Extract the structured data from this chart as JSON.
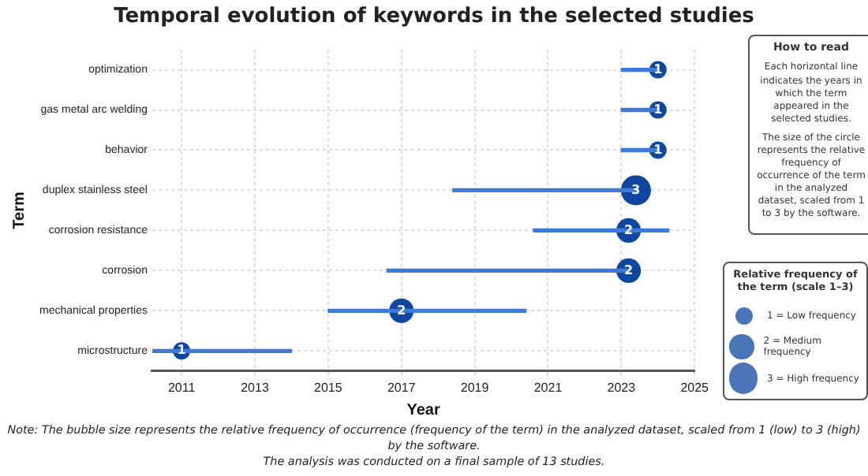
{
  "chart_data": {
    "type": "bar",
    "orientation": "horizontal",
    "title": "Temporal evolution of keywords in the selected studies",
    "xlabel": "Year",
    "ylabel": "Term",
    "legend_title": "Relative frequency of the term (scale 1–3)",
    "grid": true,
    "categories": [
      "optimization",
      "gas metal arc welding",
      "behavior",
      "duplex stainless steel",
      "corrosion resistance",
      "corrosion",
      "mechanical properties",
      "microstructure"
    ],
    "xlim": [
      2010.2,
      2025
    ],
    "xticks": [
      2011,
      2013,
      2015,
      2017,
      2019,
      2021,
      2023,
      2025
    ],
    "series": [
      {
        "color": "#3f7bd6",
        "base": [
          2023,
          2023,
          2023,
          2018.4,
          2020.6,
          2016.6,
          2015,
          2010.2
        ],
        "values": [
          1,
          1,
          1,
          5,
          3.7,
          6.6,
          5.4,
          3.8
        ]
      },
      {
        "type": "bubble",
        "color": "#0d47a1",
        "values": [
          2024,
          2024,
          2024,
          2023.4,
          2023.2,
          2023.2,
          2017,
          2011
        ],
        "sizes": [
          1,
          1,
          1,
          3,
          2,
          2,
          2,
          1
        ],
        "value_labels": [
          "1",
          "1",
          "1",
          "3",
          "2",
          "2",
          "2",
          "1"
        ]
      }
    ],
    "size_legend": [
      {
        "value": 1,
        "label": "1 = Low frequency"
      },
      {
        "value": 2,
        "label": "2 = Medium frequency"
      },
      {
        "value": 3,
        "label": "3 = High frequency"
      }
    ],
    "annotations": [
      "How to read",
      "Each horizontal line indicates the years in which the term appeared in the selected studies.",
      "The size of the circle represents the relative frequency of occurrence of the term in the analyzed dataset, scaled from 1 to 3 by the software.",
      "Note: The bubble size represents the relative frequency of occurrence (frequency of the term) in the analyzed dataset, scaled from 1 (low) to 3 (high) by the software.",
      "The analysis was conducted on a final sample of 13 studies."
    ]
  }
}
